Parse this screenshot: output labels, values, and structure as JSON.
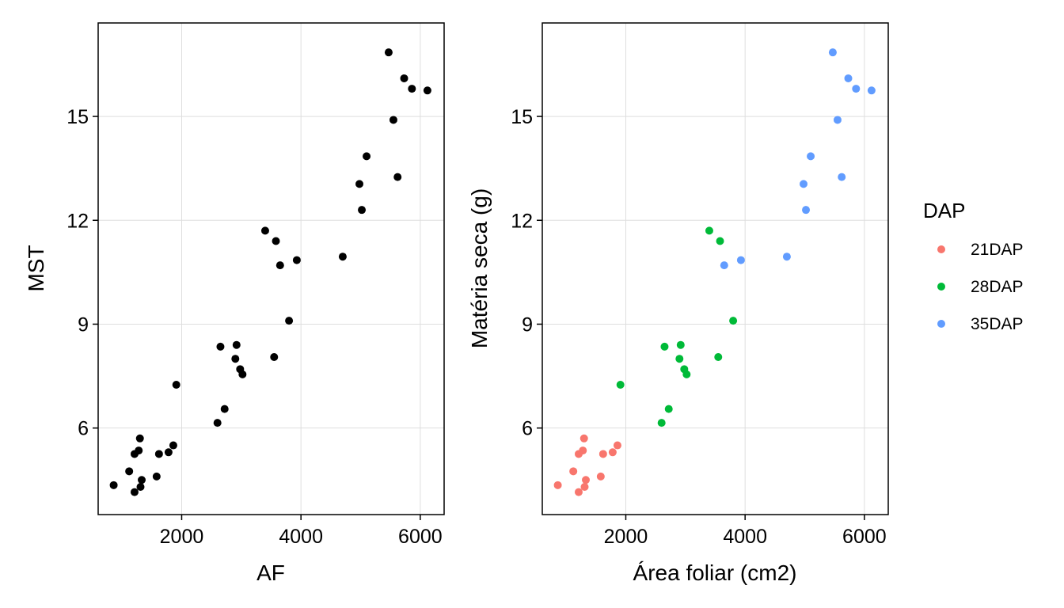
{
  "chart_data": [
    {
      "type": "scatter",
      "title": "",
      "xlabel": "AF",
      "ylabel": "MST",
      "xlim": [
        600,
        6400
      ],
      "ylim": [
        3.5,
        17.7
      ],
      "x_ticks": [
        2000,
        4000,
        6000
      ],
      "y_ticks": [
        6,
        9,
        12,
        15
      ],
      "grid": true,
      "point_color": "#000000",
      "points": [
        {
          "x": 860,
          "y": 4.35
        },
        {
          "x": 1120,
          "y": 4.75
        },
        {
          "x": 1210,
          "y": 5.25
        },
        {
          "x": 1280,
          "y": 5.35
        },
        {
          "x": 1300,
          "y": 5.7
        },
        {
          "x": 1310,
          "y": 4.3
        },
        {
          "x": 1330,
          "y": 4.5
        },
        {
          "x": 1210,
          "y": 4.15
        },
        {
          "x": 1580,
          "y": 4.6
        },
        {
          "x": 1620,
          "y": 5.25
        },
        {
          "x": 1780,
          "y": 5.3
        },
        {
          "x": 1860,
          "y": 5.5
        },
        {
          "x": 2650,
          "y": 8.35
        },
        {
          "x": 2920,
          "y": 8.4
        },
        {
          "x": 2900,
          "y": 8.0
        },
        {
          "x": 1910,
          "y": 7.25
        },
        {
          "x": 2980,
          "y": 7.7
        },
        {
          "x": 3020,
          "y": 7.55
        },
        {
          "x": 2720,
          "y": 6.55
        },
        {
          "x": 2600,
          "y": 6.15
        },
        {
          "x": 3550,
          "y": 8.05
        },
        {
          "x": 3800,
          "y": 9.1
        },
        {
          "x": 3400,
          "y": 11.7
        },
        {
          "x": 3580,
          "y": 11.4
        },
        {
          "x": 3650,
          "y": 10.7
        },
        {
          "x": 3930,
          "y": 10.85
        },
        {
          "x": 4700,
          "y": 10.95
        },
        {
          "x": 5020,
          "y": 12.3
        },
        {
          "x": 4980,
          "y": 13.05
        },
        {
          "x": 5100,
          "y": 13.85
        },
        {
          "x": 5620,
          "y": 13.25
        },
        {
          "x": 5550,
          "y": 14.9
        },
        {
          "x": 5470,
          "y": 16.85
        },
        {
          "x": 5730,
          "y": 16.1
        },
        {
          "x": 5860,
          "y": 15.8
        },
        {
          "x": 6120,
          "y": 15.75
        }
      ]
    },
    {
      "type": "scatter",
      "title": "",
      "xlabel": "Área foliar (cm2)",
      "ylabel": "Matéria seca (g)",
      "xlim": [
        600,
        6400
      ],
      "ylim": [
        3.5,
        17.7
      ],
      "x_ticks": [
        2000,
        4000,
        6000
      ],
      "y_ticks": [
        6,
        9,
        12,
        15
      ],
      "grid": true,
      "legend": {
        "title": "DAP",
        "placement": "right",
        "entries": [
          {
            "name": "21DAP",
            "color": "#F8766D"
          },
          {
            "name": "28DAP",
            "color": "#00BA38"
          },
          {
            "name": "35DAP",
            "color": "#619CFF"
          }
        ]
      },
      "series": [
        {
          "name": "21DAP",
          "color": "#F8766D",
          "points": [
            {
              "x": 860,
              "y": 4.35
            },
            {
              "x": 1120,
              "y": 4.75
            },
            {
              "x": 1210,
              "y": 5.25
            },
            {
              "x": 1280,
              "y": 5.35
            },
            {
              "x": 1300,
              "y": 5.7
            },
            {
              "x": 1310,
              "y": 4.3
            },
            {
              "x": 1330,
              "y": 4.5
            },
            {
              "x": 1210,
              "y": 4.15
            },
            {
              "x": 1580,
              "y": 4.6
            },
            {
              "x": 1620,
              "y": 5.25
            },
            {
              "x": 1780,
              "y": 5.3
            },
            {
              "x": 1860,
              "y": 5.5
            }
          ]
        },
        {
          "name": "28DAP",
          "color": "#00BA38",
          "points": [
            {
              "x": 2650,
              "y": 8.35
            },
            {
              "x": 2920,
              "y": 8.4
            },
            {
              "x": 2900,
              "y": 8.0
            },
            {
              "x": 1910,
              "y": 7.25
            },
            {
              "x": 2980,
              "y": 7.7
            },
            {
              "x": 3020,
              "y": 7.55
            },
            {
              "x": 2720,
              "y": 6.55
            },
            {
              "x": 2600,
              "y": 6.15
            },
            {
              "x": 3550,
              "y": 8.05
            },
            {
              "x": 3800,
              "y": 9.1
            },
            {
              "x": 3400,
              "y": 11.7
            },
            {
              "x": 3580,
              "y": 11.4
            }
          ]
        },
        {
          "name": "35DAP",
          "color": "#619CFF",
          "points": [
            {
              "x": 3650,
              "y": 10.7
            },
            {
              "x": 3930,
              "y": 10.85
            },
            {
              "x": 4700,
              "y": 10.95
            },
            {
              "x": 5020,
              "y": 12.3
            },
            {
              "x": 4980,
              "y": 13.05
            },
            {
              "x": 5100,
              "y": 13.85
            },
            {
              "x": 5620,
              "y": 13.25
            },
            {
              "x": 5550,
              "y": 14.9
            },
            {
              "x": 5470,
              "y": 16.85
            },
            {
              "x": 5730,
              "y": 16.1
            },
            {
              "x": 5860,
              "y": 15.8
            },
            {
              "x": 6120,
              "y": 15.75
            }
          ]
        }
      ]
    }
  ]
}
